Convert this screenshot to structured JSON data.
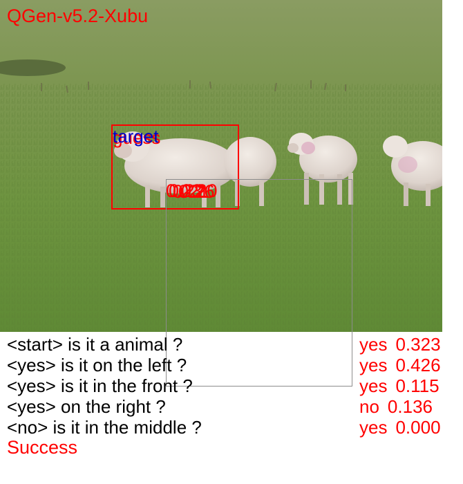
{
  "model_name": "QGen-v5.2-Xubu",
  "overlay": {
    "labels": [
      "target",
      "guess"
    ],
    "scores": [
      "0.23",
      "0.26",
      "0.20",
      "0.21",
      "0.22"
    ]
  },
  "dialogue": [
    {
      "question": "<start> is it a animal ?",
      "answer": "yes",
      "prob": "0.323"
    },
    {
      "question": "<yes> is it on the left ?",
      "answer": "yes",
      "prob": "0.426"
    },
    {
      "question": "<yes> is it in the front ?",
      "answer": "yes",
      "prob": "0.115"
    },
    {
      "question": "<yes> on the right ?",
      "answer": "no",
      "prob": "0.136"
    },
    {
      "question": "<no> is it in the middle ?",
      "answer": "yes",
      "prob": "0.000"
    }
  ],
  "result": "Success",
  "colors": {
    "accent": "#ff0000",
    "target_label": "#0000cc",
    "text": "#000000",
    "proposal_box": "#8c8c8c"
  }
}
